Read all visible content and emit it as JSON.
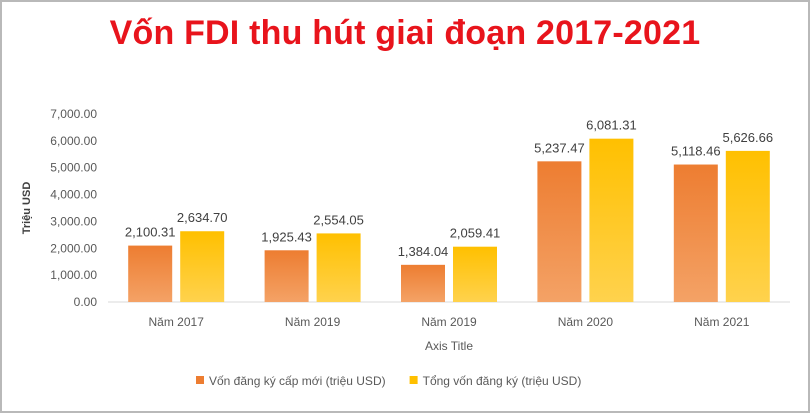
{
  "chart_data": {
    "type": "bar",
    "title": "Vốn FDI thu hút giai đoạn 2017-2021",
    "xlabel": "Axis Title",
    "ylabel": "Triệu USD",
    "categories": [
      "Năm 2017",
      "Năm 2019",
      "Năm 2019",
      "Năm 2020",
      "Năm 2021"
    ],
    "series": [
      {
        "name": "Vốn đăng ký cấp mới (triệu USD)",
        "color": "#ed7d31",
        "values": [
          2100.31,
          1925.43,
          1384.04,
          5237.47,
          5118.46
        ],
        "labels": [
          "2,100.31",
          "1,925.43",
          "1,384.04",
          "5,237.47",
          "5,118.46"
        ]
      },
      {
        "name": "Tổng vốn đăng ký (triệu USD)",
        "color": "#ffc000",
        "values": [
          2634.7,
          2554.05,
          2059.41,
          6081.31,
          5626.66
        ],
        "labels": [
          "2,634.70",
          "2,554.05",
          "2,059.41",
          "6,081.31",
          "5,626.66"
        ]
      }
    ],
    "ylim": [
      0,
      7000
    ],
    "yticks": [
      0,
      1000,
      2000,
      3000,
      4000,
      5000,
      6000,
      7000
    ],
    "ytick_labels": [
      "0.00",
      "1,000.00",
      "2,000.00",
      "3,000.00",
      "4,000.00",
      "5,000.00",
      "6,000.00",
      "7,000.00"
    ],
    "grid": false,
    "legend": "bottom"
  }
}
